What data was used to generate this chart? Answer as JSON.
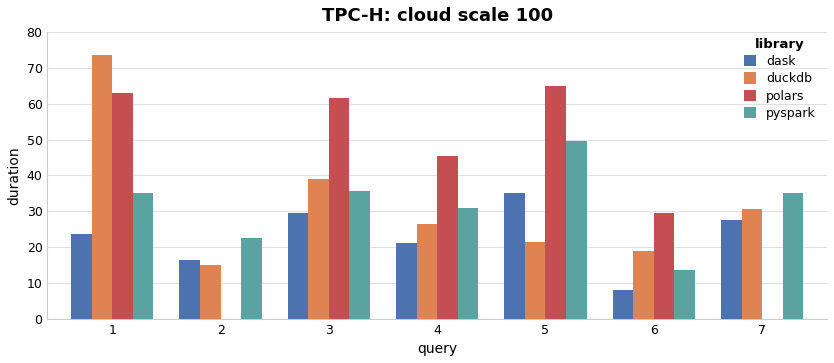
{
  "title": "TPC-H: cloud scale 100",
  "xlabel": "query",
  "ylabel": "duration",
  "categories": [
    "1",
    "2",
    "3",
    "4",
    "5",
    "6",
    "7"
  ],
  "libraries": [
    "dask",
    "duckdb",
    "polars",
    "pyspark"
  ],
  "colors": {
    "dask": "#4C72B0",
    "duckdb": "#DD8452",
    "polars": "#C44E52",
    "pyspark": "#5BA3A0"
  },
  "values": {
    "dask": [
      23.5,
      16.5,
      29.5,
      21.0,
      35.0,
      8.0,
      27.5
    ],
    "duckdb": [
      73.5,
      15.0,
      39.0,
      26.5,
      21.5,
      19.0,
      30.5
    ],
    "polars": [
      63.0,
      0,
      61.5,
      45.5,
      65.0,
      29.5,
      0
    ],
    "pyspark": [
      35.0,
      22.5,
      35.5,
      31.0,
      49.5,
      13.5,
      35.0
    ]
  },
  "has_bar": {
    "dask": [
      1,
      1,
      1,
      1,
      1,
      1,
      1
    ],
    "duckdb": [
      1,
      1,
      1,
      1,
      1,
      1,
      1
    ],
    "polars": [
      1,
      0,
      1,
      1,
      1,
      1,
      0
    ],
    "pyspark": [
      1,
      1,
      1,
      1,
      1,
      1,
      1
    ]
  },
  "ylim": [
    0,
    80
  ],
  "yticks": [
    0,
    10,
    20,
    30,
    40,
    50,
    60,
    70,
    80
  ],
  "legend_title": "library",
  "plot_bg": "#ffffff",
  "fig_bg": "#ffffff",
  "grid_color": "#e0e0e0",
  "title_fontsize": 13,
  "axis_fontsize": 10,
  "bar_width": 0.19,
  "group_width": 0.85
}
